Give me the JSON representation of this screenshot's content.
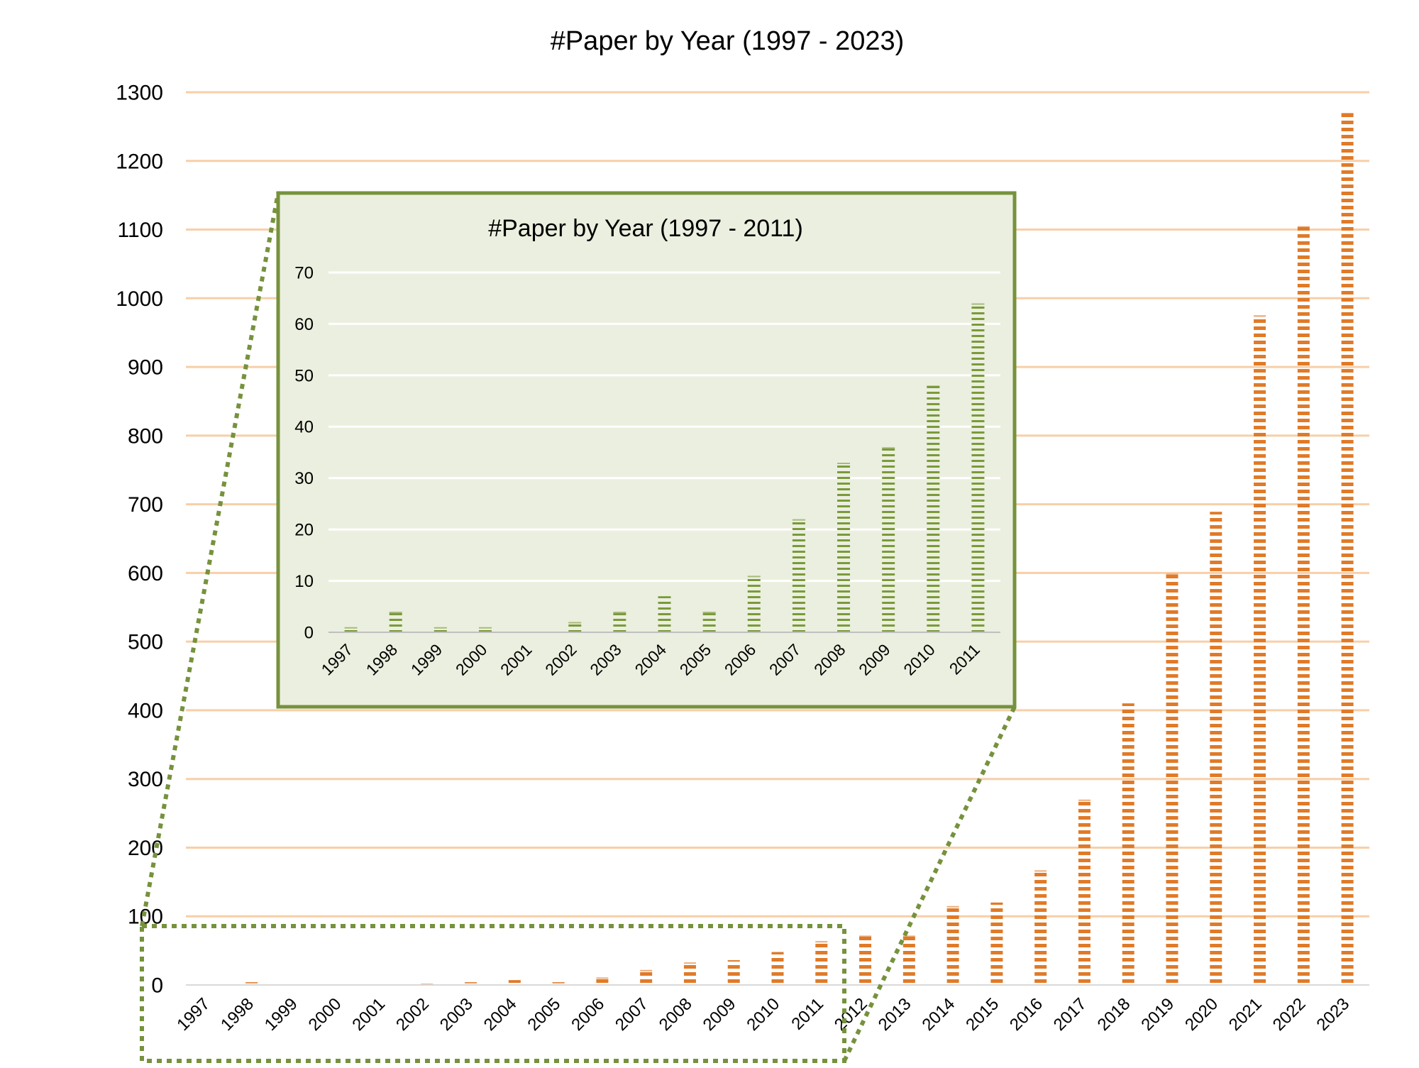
{
  "colors": {
    "main_bar": "#e07a28",
    "main_grid": "#f8cfa8",
    "inset_bar": "#7a9a3a",
    "inset_bg": "#ebefdf",
    "inset_border": "#76923c",
    "text": "#000000"
  },
  "chart_data": [
    {
      "type": "bar",
      "title": "#Paper by Year (1997 - 2023)",
      "xlabel": "",
      "ylabel": "",
      "categories": [
        "1997",
        "1998",
        "1999",
        "2000",
        "2001",
        "2002",
        "2003",
        "2004",
        "2005",
        "2006",
        "2007",
        "2008",
        "2009",
        "2010",
        "2011",
        "2012",
        "2013",
        "2014",
        "2015",
        "2016",
        "2017",
        "2018",
        "2019",
        "2020",
        "2021",
        "2022",
        "2023"
      ],
      "values": [
        1,
        4,
        1,
        1,
        0,
        2,
        4,
        7,
        4,
        11,
        22,
        33,
        36,
        48,
        64,
        72,
        72,
        115,
        120,
        167,
        270,
        410,
        599,
        689,
        975,
        1105,
        1270
      ],
      "ylim": [
        0,
        1300
      ],
      "yticks": [
        0,
        100,
        200,
        300,
        400,
        500,
        600,
        700,
        800,
        900,
        1000,
        1100,
        1200,
        1300
      ],
      "grid": true,
      "bar_style": "dashed"
    },
    {
      "type": "bar",
      "title": "#Paper by Year (1997 - 2011)",
      "xlabel": "",
      "ylabel": "",
      "categories": [
        "1997",
        "1998",
        "1999",
        "2000",
        "2001",
        "2002",
        "2003",
        "2004",
        "2005",
        "2006",
        "2007",
        "2008",
        "2009",
        "2010",
        "2011"
      ],
      "values": [
        1,
        4,
        1,
        1,
        0,
        2,
        4,
        7,
        4,
        11,
        22,
        33,
        36,
        48,
        64
      ],
      "ylim": [
        0,
        70
      ],
      "yticks": [
        0,
        10,
        20,
        30,
        40,
        50,
        60,
        70
      ],
      "grid": true,
      "bar_style": "dashed",
      "zoom_of": "1997-2011"
    }
  ]
}
